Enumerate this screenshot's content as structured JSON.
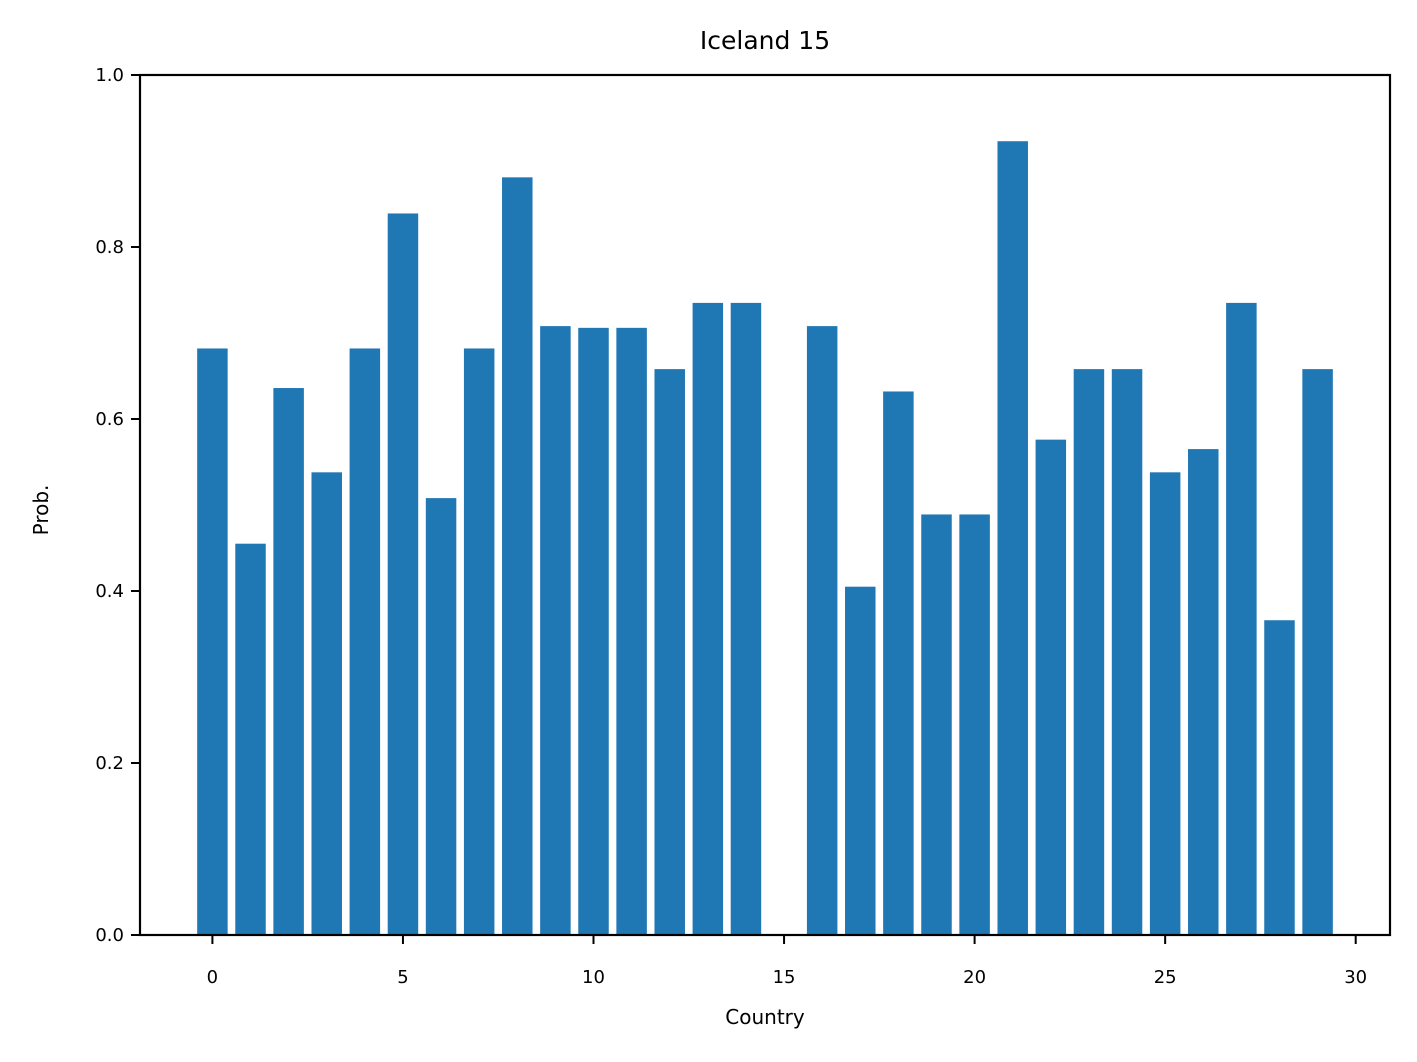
{
  "chart_data": {
    "type": "bar",
    "title": "Iceland 15",
    "xlabel": "Country",
    "ylabel": "Prob.",
    "x": [
      0,
      1,
      2,
      3,
      4,
      5,
      6,
      7,
      8,
      9,
      10,
      11,
      12,
      13,
      14,
      15,
      16,
      17,
      18,
      19,
      20,
      21,
      22,
      23,
      24,
      25,
      26,
      27,
      28,
      29
    ],
    "values": [
      0.682,
      0.455,
      0.636,
      0.538,
      0.682,
      0.839,
      0.508,
      0.682,
      0.881,
      0.708,
      0.706,
      0.706,
      0.658,
      0.735,
      0.735,
      0.0,
      0.708,
      0.405,
      0.632,
      0.489,
      0.489,
      0.923,
      0.576,
      0.658,
      0.658,
      0.538,
      0.565,
      0.735,
      0.366,
      0.658
    ],
    "xlim": [
      -1.9,
      30.9
    ],
    "ylim": [
      0,
      1.0
    ],
    "xticks": [
      0,
      5,
      10,
      15,
      20,
      25,
      30
    ],
    "xtick_labels": [
      "0",
      "5",
      "10",
      "15",
      "20",
      "25",
      "30"
    ],
    "yticks": [
      0.0,
      0.2,
      0.4,
      0.6,
      0.8,
      1.0
    ],
    "ytick_labels": [
      "0.0",
      "0.2",
      "0.4",
      "0.6",
      "0.8",
      "1.0"
    ],
    "bar_color": "#1f77b4",
    "grid": false,
    "legend": "none"
  }
}
